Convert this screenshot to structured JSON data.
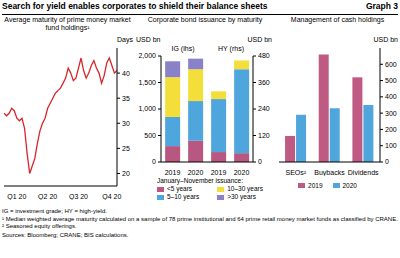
{
  "title": "Search for yield enables corporates to shield their balance sheets",
  "graph_label": "Graph 3",
  "notes": [
    "IG = investment grade; HY = high-yield.",
    "¹ Median weighted average maturity calculated on a sample of 78 prime institutional and 64 prime retail money market funds as classified by CRANE.",
    "² Seasoned equity offerings."
  ],
  "sources": "Sources: Bloomberg; CRANE; BIS calculations.",
  "chart_data": [
    {
      "type": "line",
      "title": "Average maturity of prime money market fund holdings¹",
      "y_label": "Days",
      "categories": [
        null,
        null,
        null,
        null,
        null,
        "Q1 20",
        null,
        null,
        null,
        null,
        null,
        null,
        null,
        null,
        null,
        null,
        null,
        "Q2 20",
        null,
        null,
        null,
        null,
        null,
        null,
        null,
        null,
        null,
        null,
        null,
        "Q3 20",
        null,
        null,
        null,
        null,
        null,
        null,
        null,
        null,
        null,
        null,
        null,
        null,
        "Q4 20",
        null,
        null
      ],
      "values": [
        32,
        31.5,
        32,
        33,
        32.5,
        31,
        30.5,
        31,
        29,
        24,
        20,
        21.5,
        23,
        26,
        28.5,
        30,
        31,
        33,
        34,
        35,
        36,
        36.5,
        37,
        38,
        39,
        41,
        40,
        38.5,
        39,
        41,
        43,
        40.5,
        39,
        40,
        41.5,
        42.5,
        41,
        40,
        38,
        39.5,
        42,
        43,
        41.5,
        40,
        40.5
      ],
      "color": "#d7262b",
      "ylim": [
        17.5,
        45
      ],
      "yticks": [
        20,
        25,
        30,
        35,
        40
      ],
      "grid": false
    },
    {
      "type": "bar",
      "stacked": true,
      "title": "Corporate bond issuance by maturity",
      "y_label": "USD bn",
      "y2_label": "USD bn",
      "legend_title": "January–November issuance:",
      "groups": [
        {
          "label": "IG (lhs)",
          "axis": "y",
          "categories": [
            "2019",
            "2020"
          ]
        },
        {
          "label": "HY (rhs)",
          "axis": "y2",
          "categories": [
            "2019",
            "2020"
          ]
        }
      ],
      "series": [
        {
          "name": "<5 years",
          "color": "#b8577f",
          "values": [
            [
              300,
              400
            ],
            [
              45,
              40
            ]
          ]
        },
        {
          "name": "5–10 years",
          "color": "#4ea6dc",
          "values": [
            [
              550,
              750
            ],
            [
              240,
              380
            ]
          ]
        },
        {
          "name": "10–30 years",
          "color": "#f4df3a",
          "values": [
            [
              750,
              600
            ],
            [
              35,
              40
            ]
          ]
        },
        {
          "name": ">30 years",
          "color": "#8a82c8",
          "values": [
            [
              300,
              200
            ],
            [
              0,
              0
            ]
          ]
        }
      ],
      "ylim": [
        0,
        2000
      ],
      "yticks": [
        0,
        500,
        {
          "value": 1000,
          "label": "1,000"
        },
        {
          "value": 1500,
          "label": "1,500"
        },
        {
          "value": 2000,
          "label": "2,000"
        }
      ],
      "y2lim": [
        0,
        480
      ],
      "y2ticks": [
        0,
        120,
        240,
        360,
        480
      ],
      "grid": false
    },
    {
      "type": "bar",
      "title": "Management of cash holdings",
      "y_label": "USD bn",
      "categories": [
        "SEOs²",
        "Buybacks",
        "Dividends"
      ],
      "series": [
        {
          "name": "2019",
          "color": "#bf5b82",
          "values": [
            160,
            660,
            520
          ]
        },
        {
          "name": "2020",
          "color": "#4ea6dc",
          "values": [
            290,
            330,
            350
          ]
        }
      ],
      "ylim": [
        0,
        700
      ],
      "yticks": [
        0,
        100,
        200,
        300,
        400,
        500,
        600
      ],
      "grid": false
    }
  ]
}
